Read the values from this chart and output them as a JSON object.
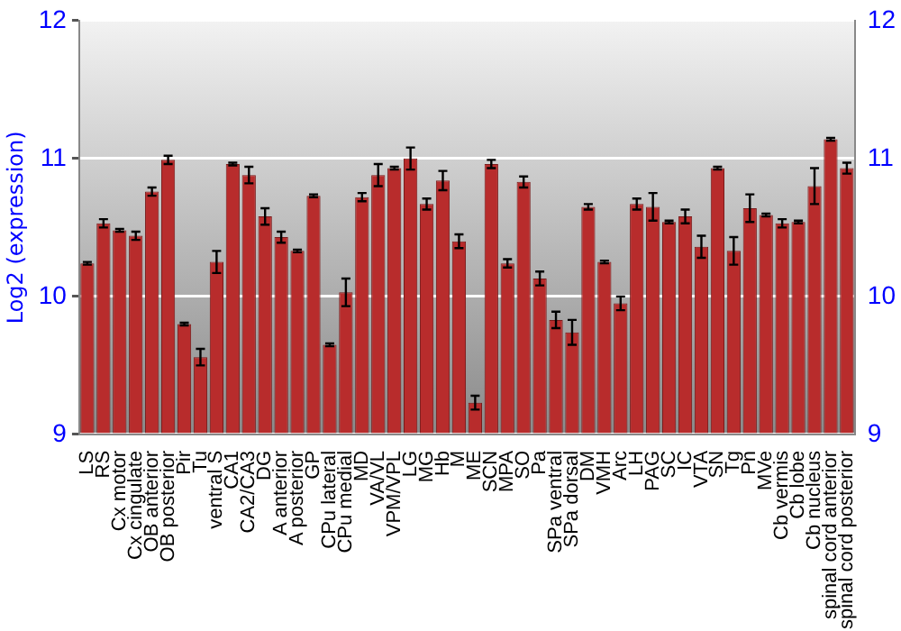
{
  "chart_data": {
    "type": "bar",
    "ylabel": "Log2 (expression)",
    "categories": [
      "LS",
      "RS",
      "Cx motor",
      "Cx cingulate",
      "OB anterior",
      "OB posterior",
      "Pir",
      "Tu",
      "ventral S",
      "CA1",
      "CA2/CA3",
      "DG",
      "A anterior",
      "A posterior",
      "GP",
      "CPu lateral",
      "CPu medial",
      "MD",
      "VA/VL",
      "VPM/VPL",
      "LG",
      "MG",
      "Hb",
      "M",
      "ME",
      "SCN",
      "MPA",
      "SO",
      "Pa",
      "SPa ventral",
      "SPa dorsal",
      "DM",
      "VMH",
      "Arc",
      "LH",
      "PAG",
      "SC",
      "IC",
      "VTA",
      "SN",
      "Tg",
      "Pn",
      "MVe",
      "Cb vermis",
      "Cb lobe",
      "Cb nucleus",
      "spinal cord anterior",
      "spinal cord posterior"
    ],
    "values": [
      10.24,
      10.53,
      10.48,
      10.44,
      10.76,
      10.99,
      9.8,
      9.56,
      10.25,
      10.96,
      10.88,
      10.58,
      10.43,
      10.33,
      10.73,
      9.65,
      10.03,
      10.72,
      10.88,
      10.93,
      11.0,
      10.67,
      10.84,
      10.4,
      9.23,
      10.96,
      10.24,
      10.83,
      10.13,
      9.83,
      9.74,
      10.65,
      10.25,
      9.95,
      10.67,
      10.65,
      10.54,
      10.58,
      10.36,
      10.93,
      10.33,
      10.64,
      10.59,
      10.53,
      10.54,
      10.8,
      11.14,
      10.93
    ],
    "errors": [
      0.01,
      0.03,
      0.01,
      0.03,
      0.03,
      0.03,
      0.01,
      0.06,
      0.08,
      0.01,
      0.06,
      0.06,
      0.04,
      0.01,
      0.01,
      0.01,
      0.1,
      0.03,
      0.08,
      0.01,
      0.08,
      0.04,
      0.07,
      0.05,
      0.05,
      0.03,
      0.03,
      0.04,
      0.05,
      0.06,
      0.09,
      0.02,
      0.01,
      0.05,
      0.04,
      0.1,
      0.01,
      0.05,
      0.08,
      0.01,
      0.1,
      0.1,
      0.01,
      0.03,
      0.01,
      0.13,
      0.01,
      0.04
    ],
    "color": "#b82c2c",
    "ylim": [
      9,
      12
    ],
    "yticks": [
      9,
      10,
      11,
      12
    ],
    "y2lim": [
      9,
      12
    ],
    "y2ticks": [
      9,
      10,
      11,
      12
    ],
    "grid": "y"
  }
}
